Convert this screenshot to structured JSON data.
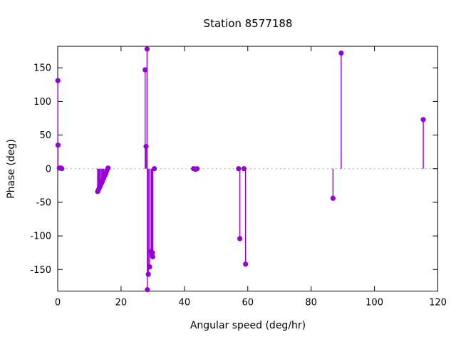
{
  "chart_data": {
    "type": "scatter",
    "subtype": "impulses-with-points",
    "title": "Station 8577188",
    "xlabel": "Angular speed (deg/hr)",
    "ylabel": "Phase (deg)",
    "xlim": [
      0,
      120
    ],
    "ylim": [
      -182,
      182
    ],
    "xticks": [
      0,
      20,
      40,
      60,
      80,
      100,
      120
    ],
    "yticks": [
      -150,
      -100,
      -50,
      0,
      50,
      100,
      150
    ],
    "grid": false,
    "zero_line": "dotted-gray",
    "legend": "none",
    "series": [
      {
        "name": "phase",
        "color": "#9400d3",
        "points": [
          [
            0.04,
            131
          ],
          [
            0.1,
            35
          ],
          [
            0.5,
            1
          ],
          [
            1.0,
            1
          ],
          [
            1.3,
            0
          ],
          [
            12.6,
            -34
          ],
          [
            12.9,
            -31
          ],
          [
            13.2,
            -28
          ],
          [
            13.5,
            -25
          ],
          [
            13.9,
            -21
          ],
          [
            14.2,
            -18
          ],
          [
            14.5,
            -14
          ],
          [
            14.9,
            -10
          ],
          [
            15.2,
            -7
          ],
          [
            15.5,
            -3
          ],
          [
            15.9,
            1
          ],
          [
            27.6,
            147
          ],
          [
            27.9,
            33
          ],
          [
            28.2,
            178
          ],
          [
            28.3,
            -180
          ],
          [
            28.6,
            -157
          ],
          [
            29.0,
            -146
          ],
          [
            29.5,
            -123
          ],
          [
            29.7,
            -128
          ],
          [
            29.9,
            -125
          ],
          [
            30.0,
            -131
          ],
          [
            30.5,
            0
          ],
          [
            42.9,
            0
          ],
          [
            43.5,
            -1
          ],
          [
            44.0,
            0
          ],
          [
            57.1,
            0
          ],
          [
            57.5,
            -104
          ],
          [
            58.8,
            0
          ],
          [
            59.3,
            -142
          ],
          [
            86.9,
            -44
          ],
          [
            89.5,
            172
          ],
          [
            115.4,
            73
          ]
        ]
      }
    ]
  },
  "style": {
    "stem_color": "#9400d3",
    "border_color": "#000000",
    "zero_line_color": "#9b9b9b",
    "text_color": "#000000",
    "background": "#ffffff"
  }
}
